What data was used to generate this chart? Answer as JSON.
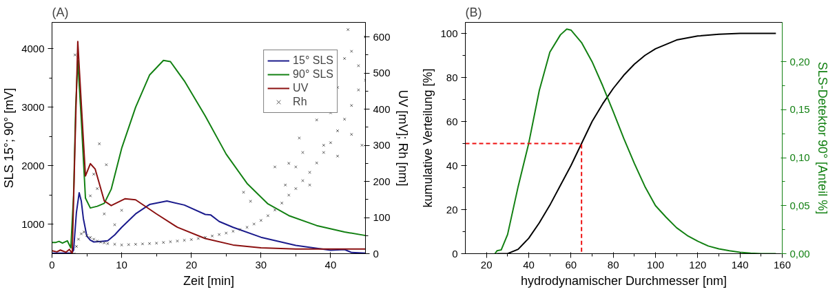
{
  "chart_data": [
    {
      "type": "line",
      "title": "(A)",
      "xlabel": "Zeit [min]",
      "ylabel": "SLS 15°; 90° [mV]",
      "y2label": "UV [mV]; Rh [nm]",
      "xlim": [
        0,
        45
      ],
      "xticks": [
        0,
        10,
        20,
        30,
        40
      ],
      "ylim": [
        500,
        4450
      ],
      "yticks": [
        1000,
        2000,
        3000,
        4000
      ],
      "y2lim": [
        0,
        640
      ],
      "y2ticks": [
        0,
        100,
        200,
        300,
        400,
        500,
        600
      ],
      "legend": "top right",
      "grid": false,
      "series": [
        {
          "name": "15° SLS",
          "color": "#1a1a8c",
          "x": [
            0,
            1,
            2,
            2.8,
            3.1,
            3.5,
            3.9,
            4.2,
            4.5,
            5,
            5.5,
            6,
            7,
            8,
            9,
            10,
            12,
            14,
            16.5,
            19,
            22,
            22.8,
            24,
            26,
            30,
            35,
            40,
            42,
            43,
            45
          ],
          "values": [
            510,
            510,
            510,
            510,
            560,
            1200,
            1540,
            1400,
            1100,
            800,
            730,
            700,
            710,
            720,
            820,
            950,
            1180,
            1340,
            1400,
            1330,
            1170,
            1160,
            1050,
            950,
            780,
            640,
            560,
            570,
            520,
            510
          ]
        },
        {
          "name": "90° SLS",
          "color": "#128012",
          "x": [
            0,
            0.5,
            1,
            1.5,
            2.2,
            2.7,
            3.1,
            3.4,
            3.7,
            4.2,
            4.8,
            5.5,
            6.5,
            7.5,
            8.5,
            10,
            12,
            14,
            16,
            17,
            19,
            22,
            25,
            28,
            31,
            34,
            38,
            42,
            45
          ],
          "values": [
            690,
            690,
            710,
            680,
            720,
            600,
            1500,
            3000,
            3800,
            2800,
            1450,
            1280,
            1310,
            1360,
            1600,
            2300,
            3000,
            3550,
            3800,
            3780,
            3450,
            2850,
            2200,
            1700,
            1350,
            1150,
            980,
            870,
            810
          ]
        },
        {
          "name": "UV",
          "color": "#8b1010",
          "axis": "y2",
          "x": [
            0,
            0.7,
            1.2,
            2,
            2.5,
            2.9,
            3.3,
            3.7,
            4.1,
            4.8,
            5.5,
            6.2,
            7.5,
            8.5,
            10.5,
            12,
            15,
            18,
            22,
            26,
            30,
            35,
            45
          ],
          "values": [
            8,
            5,
            10,
            4,
            12,
            0,
            300,
            587,
            450,
            215,
            249,
            234,
            146,
            133,
            152,
            149,
            110,
            73,
            42,
            24,
            16,
            13,
            13
          ]
        },
        {
          "name": "Rh",
          "type": "scatter",
          "marker": "cross",
          "color": "#333333",
          "axis": "y2",
          "x": [
            3.2,
            3.5,
            3.8,
            4.2,
            4.6,
            5,
            5.5,
            6,
            6.5,
            7,
            7.5,
            8,
            9,
            10,
            11,
            12,
            13,
            14,
            15,
            16,
            17,
            18,
            19,
            20,
            21,
            22,
            23,
            24,
            25,
            26,
            27,
            28,
            29,
            30,
            31,
            32,
            33,
            34,
            35,
            36,
            37,
            38,
            39,
            40,
            41,
            42,
            43,
            44,
            45,
            3.3,
            6.8,
            7.8,
            6,
            5.5,
            10,
            7.5,
            9,
            6.5,
            27.5,
            28.5,
            32,
            34,
            35,
            36,
            38,
            40,
            41,
            42,
            42.5,
            43,
            44,
            45,
            44.5,
            43,
            41,
            39,
            37,
            35.5,
            33.5
          ],
          "values": [
            0,
            20,
            40,
            55,
            60,
            50,
            45,
            40,
            35,
            32,
            30,
            28,
            26,
            24,
            25,
            26,
            27,
            28,
            29,
            31,
            33,
            35,
            37,
            39,
            42,
            45,
            49,
            53,
            57,
            62,
            67,
            73,
            82,
            92,
            105,
            121,
            140,
            162,
            180,
            202,
            225,
            251,
            280,
            307,
            340,
            372,
            410,
            453,
            480,
            550,
            304,
            246,
            220,
            160,
            120,
            110,
            80,
            180,
            170,
            145,
            240,
            250,
            240,
            280,
            370,
            390,
            460,
            540,
            620,
            560,
            520,
            600,
            300,
            330,
            270,
            300,
            190,
            320,
            190
          ]
        }
      ]
    },
    {
      "type": "line",
      "title": "(B)",
      "xlabel": "hydrodynamischer Durchmesser [nm]",
      "ylabel": "kumulative Verteilung [%]",
      "y2label": "SLS-Detektor 90° [Anteil %]",
      "xlim": [
        10,
        160
      ],
      "xticks": [
        20,
        40,
        60,
        80,
        100,
        120,
        140,
        160
      ],
      "ylim": [
        0,
        105
      ],
      "yticks": [
        0,
        20,
        40,
        60,
        80,
        100
      ],
      "y2lim": [
        0,
        0.241
      ],
      "y2ticks": [
        {
          "value": 0,
          "label": "0,00"
        },
        {
          "value": 0.05,
          "label": "0,05"
        },
        {
          "value": 0.1,
          "label": "0,10"
        },
        {
          "value": 0.15,
          "label": "0,15"
        },
        {
          "value": 0.2,
          "label": "0,20"
        }
      ],
      "legend": false,
      "grid": false,
      "series": [
        {
          "color": "#000000",
          "x": [
            25,
            30,
            35,
            40,
            45,
            50,
            55,
            60,
            65,
            70,
            75,
            80,
            85,
            90,
            95,
            100,
            110,
            120,
            130,
            140,
            157
          ],
          "values": [
            0,
            0,
            2,
            7,
            14,
            22,
            31,
            40,
            50,
            60,
            68,
            75,
            81,
            86,
            90,
            93,
            97,
            98.8,
            99.6,
            100,
            100
          ]
        },
        {
          "color": "#128012",
          "axis": "y2",
          "x": [
            24,
            25,
            27,
            30,
            35,
            40,
            45,
            50,
            55,
            58,
            60,
            65,
            70,
            75,
            80,
            85,
            90,
            95,
            100,
            105,
            110,
            115,
            120,
            125,
            130,
            135,
            140,
            145,
            150,
            157
          ],
          "values": [
            0,
            0.003,
            0.004,
            0.02,
            0.07,
            0.115,
            0.17,
            0.21,
            0.228,
            0.234,
            0.233,
            0.22,
            0.2,
            0.175,
            0.148,
            0.12,
            0.094,
            0.07,
            0.05,
            0.038,
            0.027,
            0.019,
            0.013,
            0.008,
            0.005,
            0.003,
            0.0015,
            0.0005,
            0,
            0
          ]
        },
        {
          "color": "#ee1111",
          "line_style": "dashed",
          "x": [
            10,
            65,
            65
          ],
          "values": [
            50,
            50,
            0
          ]
        }
      ]
    }
  ]
}
